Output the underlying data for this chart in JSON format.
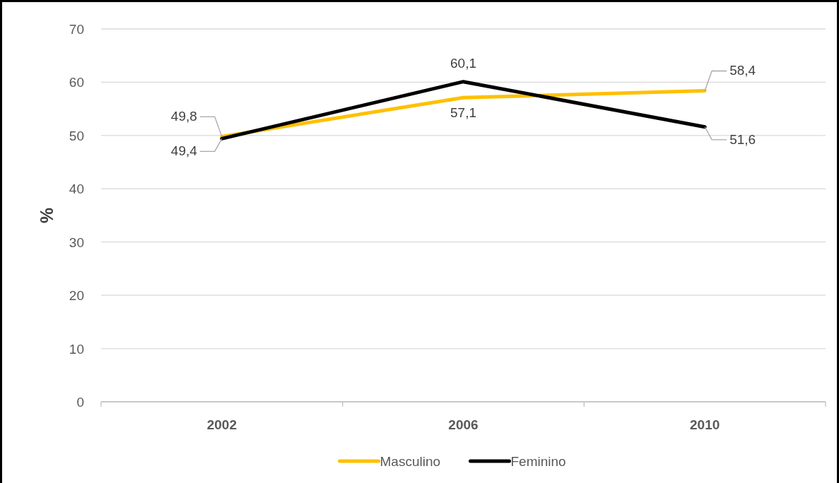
{
  "chart_data": {
    "type": "line",
    "ylabel": "%",
    "categories": [
      "2002",
      "2006",
      "2010"
    ],
    "series": [
      {
        "name": "Masculino",
        "color": "#ffc000",
        "values": [
          49.8,
          57.1,
          58.4
        ],
        "value_labels": [
          "49,8",
          "57,1",
          "58,4"
        ]
      },
      {
        "name": "Feminino",
        "color": "#000000",
        "values": [
          49.4,
          60.1,
          51.6
        ],
        "value_labels": [
          "49,4",
          "60,1",
          "51,6"
        ]
      }
    ],
    "ylim": [
      0,
      70
    ],
    "yticks": [
      0,
      10,
      20,
      30,
      40,
      50,
      60,
      70
    ],
    "grid": "y",
    "legend": "bottom",
    "marker": "none",
    "line_style": "solid"
  }
}
